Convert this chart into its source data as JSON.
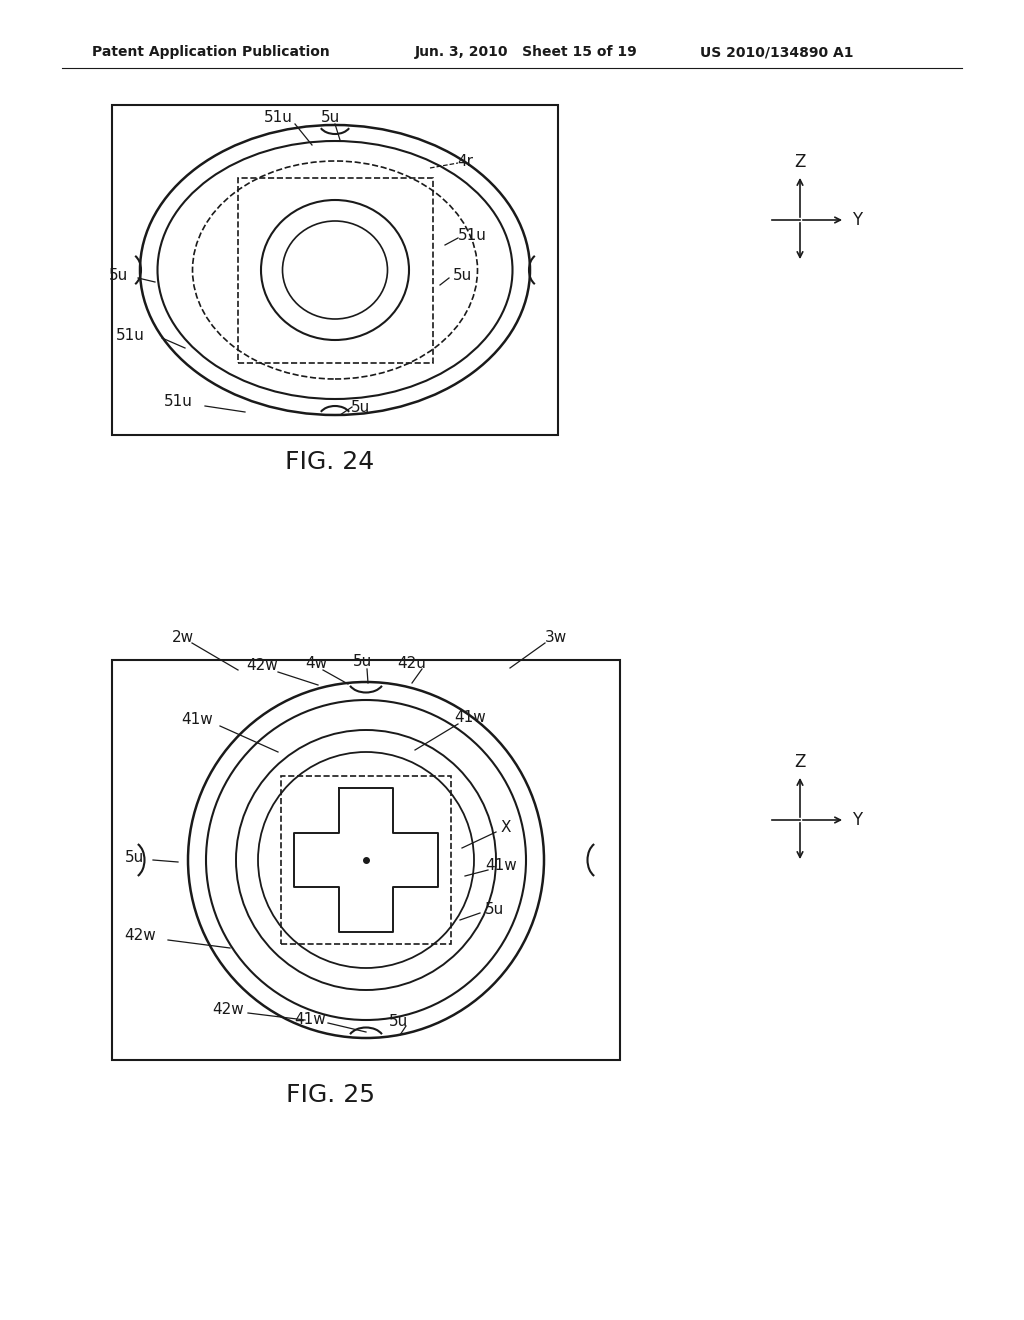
{
  "bg_color": "#ffffff",
  "text_color": "#1a1a1a",
  "header_left": "Patent Application Publication",
  "header_mid": "Jun. 3, 2010   Sheet 15 of 19",
  "header_right": "US 2010/134890 A1",
  "fig24_label": "FIG. 24",
  "fig25_label": "FIG. 25",
  "lc": "#1a1a1a"
}
